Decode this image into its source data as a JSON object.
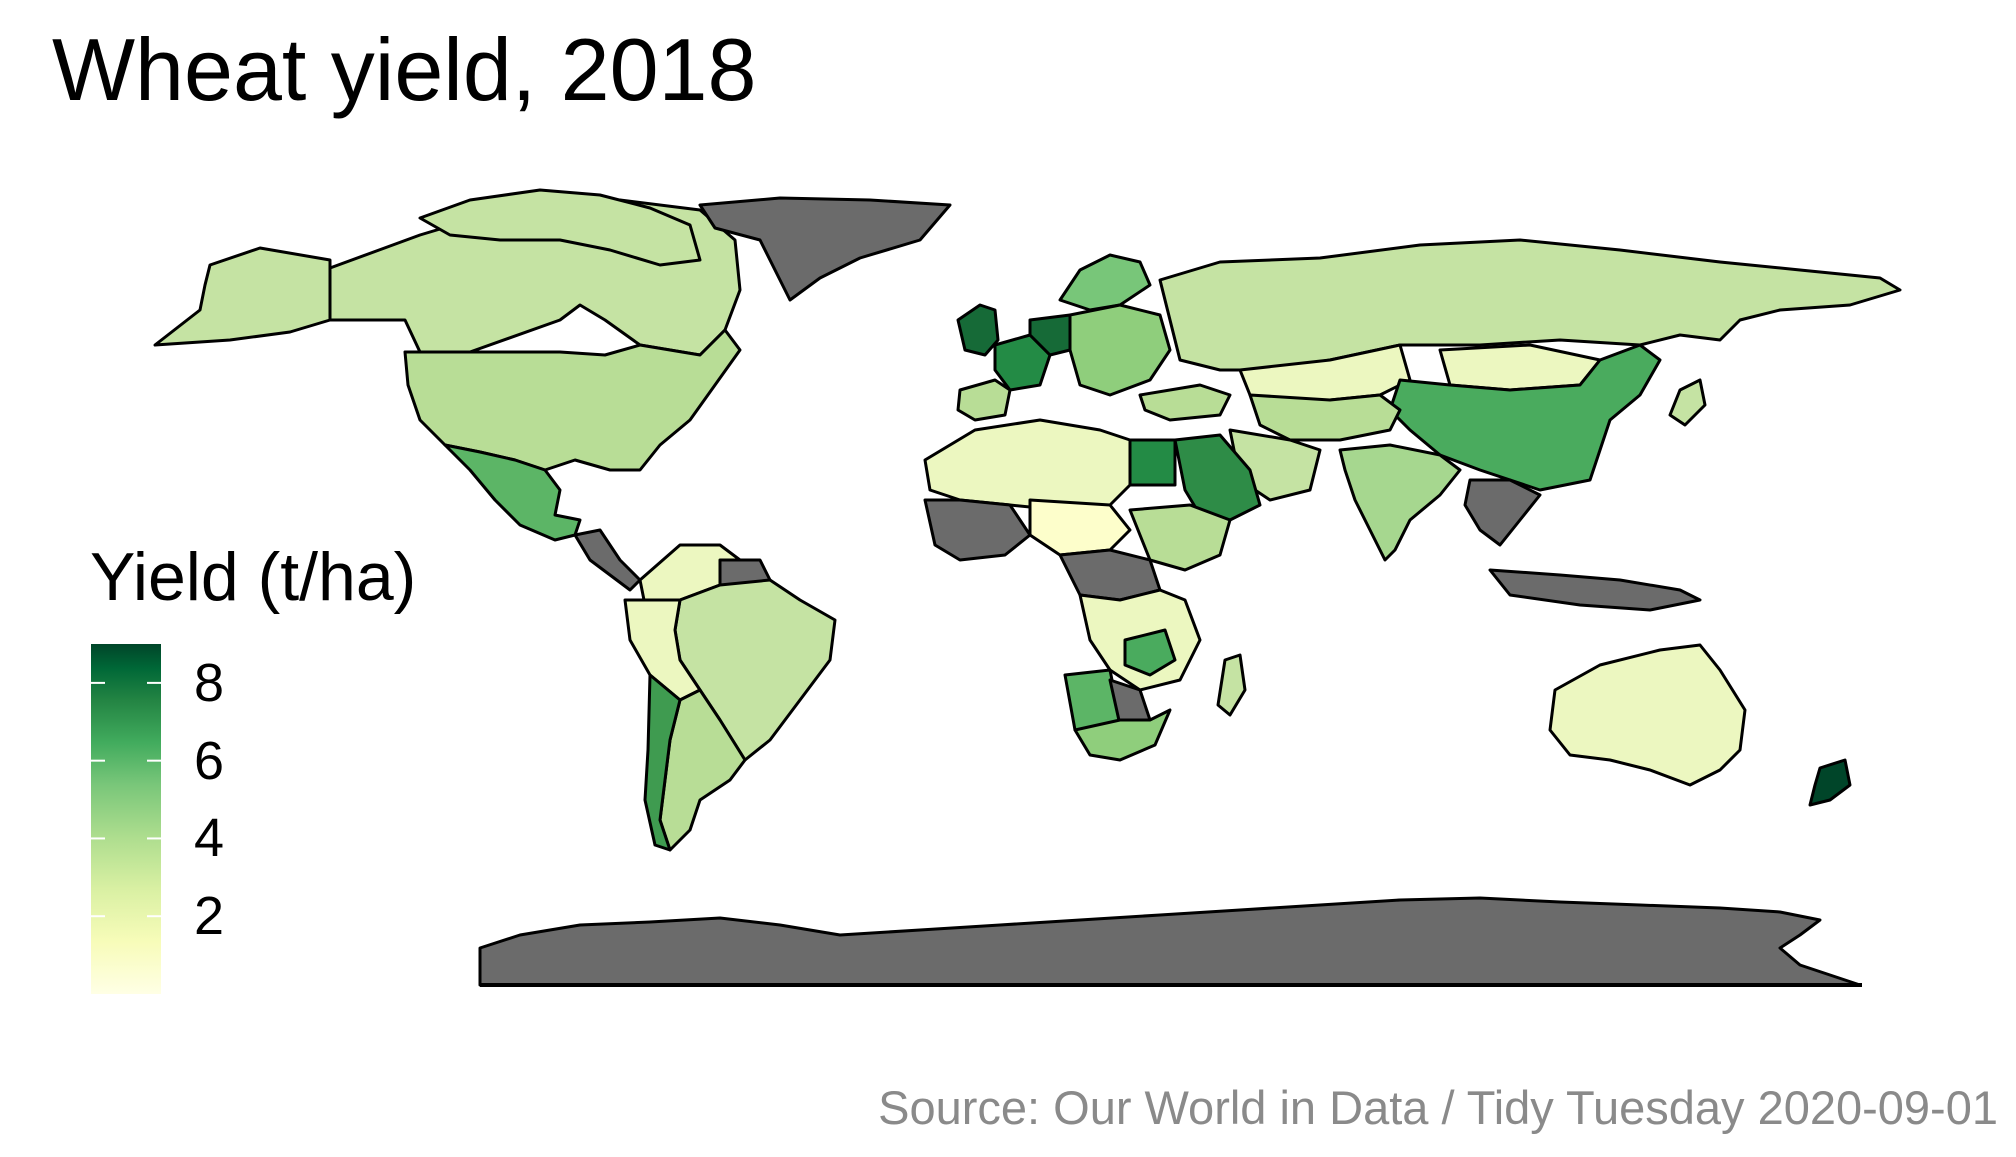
{
  "title": "Wheat yield, 2018",
  "legend": {
    "title": "Yield (t/ha)",
    "ticks": [
      "8",
      "6",
      "4",
      "2"
    ],
    "tick_values": [
      8,
      6,
      4,
      2
    ],
    "range": [
      0,
      9
    ],
    "color_low": "#ffffe5",
    "color_mid": "#78c679",
    "color_high": "#004529",
    "no_data_color": "#6b6b6b"
  },
  "caption": "Source: Our World in Data / Tidy Tuesday 2020-09-01"
}
